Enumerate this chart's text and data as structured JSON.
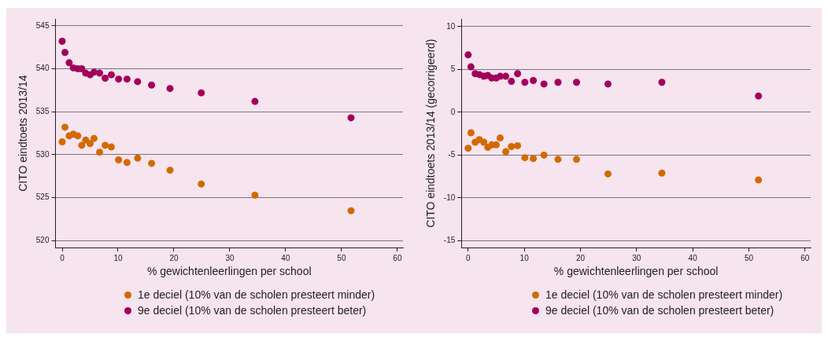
{
  "chart_data": [
    {
      "type": "scatter",
      "xlabel": "% gewichtenleerlingen per school",
      "ylabel": "CITO eindtoets 2013/14",
      "xlim": [
        -1.2,
        61
      ],
      "xticks": [
        0,
        10,
        20,
        30,
        40,
        50,
        60
      ],
      "ylim": [
        519.2,
        545.8
      ],
      "yticks": [
        520,
        525,
        530,
        535,
        540,
        545
      ],
      "grid": "y",
      "legend": "bottom",
      "marker": "circle",
      "x": [
        0,
        0.5,
        1.25,
        2.0,
        2.8,
        3.5,
        4.2,
        5.0,
        5.7,
        6.7,
        7.7,
        8.8,
        10.1,
        11.6,
        13.5,
        16.0,
        19.3,
        24.9,
        34.5,
        51.7
      ],
      "series": [
        {
          "name": "1e deciel (10% van de scholen presteert minder)",
          "color": "#d26a00",
          "values": [
            531.5,
            533.2,
            532.2,
            532.4,
            532.2,
            531.1,
            531.7,
            531.3,
            531.9,
            530.3,
            531.1,
            530.9,
            529.4,
            529.1,
            529.6,
            529.0,
            528.2,
            526.6,
            525.3,
            523.5
          ]
        },
        {
          "name": "9e deciel (10% van de scholen presteert beter)",
          "color": "#a3005c",
          "values": [
            543.2,
            541.9,
            540.7,
            540.1,
            540.0,
            540.0,
            539.5,
            539.3,
            539.6,
            539.5,
            538.9,
            539.3,
            538.8,
            538.8,
            538.5,
            538.1,
            537.7,
            537.2,
            536.2,
            534.3
          ]
        }
      ]
    },
    {
      "type": "scatter",
      "xlabel": "% gewichtenleerlingen per school",
      "ylabel": "CITO eindtoets 2013/14 (gecorrigeerd)",
      "xlim": [
        -1.2,
        61
      ],
      "xticks": [
        0,
        10,
        20,
        30,
        40,
        50,
        60
      ],
      "ylim": [
        -15.8,
        10.9
      ],
      "yticks": [
        -15,
        -10,
        -5,
        0,
        5,
        10
      ],
      "grid": "y",
      "legend": "bottom",
      "marker": "circle",
      "x": [
        0,
        0.5,
        1.25,
        2.0,
        2.8,
        3.5,
        4.2,
        5.0,
        5.7,
        6.7,
        7.7,
        8.8,
        10.1,
        11.6,
        13.5,
        16.0,
        19.3,
        24.9,
        34.5,
        51.7
      ],
      "series": [
        {
          "name": "1e deciel (10% van de scholen presteert minder)",
          "color": "#d26a00",
          "values": [
            -4.2,
            -2.4,
            -3.5,
            -3.2,
            -3.5,
            -4.1,
            -3.8,
            -3.8,
            -3.0,
            -4.6,
            -4.0,
            -3.9,
            -5.3,
            -5.4,
            -5.0,
            -5.5,
            -5.5,
            -7.2,
            -7.1,
            -7.9
          ]
        },
        {
          "name": "9e deciel (10% van de scholen presteert beter)",
          "color": "#a3005c",
          "values": [
            6.7,
            5.3,
            4.5,
            4.4,
            4.2,
            4.3,
            4.0,
            4.0,
            4.2,
            4.2,
            3.6,
            4.5,
            3.5,
            3.7,
            3.3,
            3.5,
            3.5,
            3.3,
            3.5,
            1.9
          ]
        }
      ]
    }
  ]
}
